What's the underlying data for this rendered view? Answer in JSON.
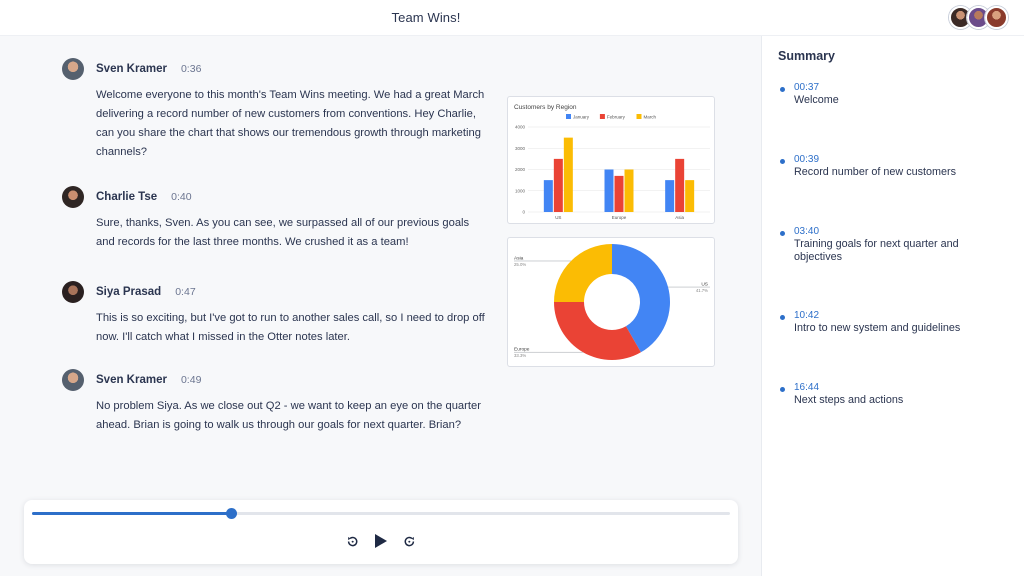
{
  "header": {
    "title": "Team Wins!",
    "participants": [
      "participant-1",
      "participant-2",
      "participant-3"
    ]
  },
  "transcript": [
    {
      "speaker": "Sven Kramer",
      "time": "0:36",
      "text": "Welcome everyone to this month's Team Wins meeting. We had a great March delivering a record number of new customers from conventions. Hey Charlie, can you share the chart that shows our tremendous growth through marketing channels?"
    },
    {
      "speaker": "Charlie Tse",
      "time": "0:40",
      "text": "Sure, thanks, Sven. As you can see, we surpassed all of our previous goals and records for the last three months. We crushed it as a team!"
    },
    {
      "speaker": "Siya Prasad",
      "time": "0:47",
      "text": "This is so exciting, but I've got to run to another sales call, so I need to drop off now. I'll catch what I missed in the Otter notes later."
    },
    {
      "speaker": "Sven Kramer",
      "time": "0:49",
      "text": "No problem Siya. As we close out Q2 - we want to keep an eye on the quarter ahead. Brian is going to walk us through our goals for next quarter. Brian?"
    }
  ],
  "chart_data": [
    {
      "type": "bar",
      "title": "Customers by Region",
      "categories": [
        "US",
        "Europe",
        "Asia"
      ],
      "series": [
        {
          "name": "January",
          "values": [
            1500,
            2000,
            1500
          ],
          "color": "#4285f4"
        },
        {
          "name": "February",
          "values": [
            2500,
            1700,
            2500
          ],
          "color": "#ea4335"
        },
        {
          "name": "March",
          "values": [
            3500,
            2000,
            1500
          ],
          "color": "#fbbc04"
        }
      ],
      "yticks": [
        0,
        1000,
        2000,
        3000,
        4000
      ],
      "ylim": [
        0,
        4000
      ],
      "legend": "top",
      "grid": true
    },
    {
      "type": "pie",
      "donut": true,
      "slices": [
        {
          "label": "US",
          "pct": "41.7%",
          "value": 41.7,
          "color": "#4285f4"
        },
        {
          "label": "Europe",
          "pct": "33.3%",
          "value": 33.3,
          "color": "#ea4335"
        },
        {
          "label": "Asia",
          "pct": "25.0%",
          "value": 25.0,
          "color": "#fbbc04"
        }
      ]
    }
  ],
  "player": {
    "progress": 0.285,
    "rewind_icon": "rewind-icon",
    "play_icon": "play-icon",
    "forward_icon": "forward-icon"
  },
  "summary": {
    "title": "Summary",
    "items": [
      {
        "time": "00:37",
        "text": "Welcome"
      },
      {
        "time": "00:39",
        "text": "Record number of new customers"
      },
      {
        "time": "03:40",
        "text": "Training goals for next quarter and objectives"
      },
      {
        "time": "10:42",
        "text": "Intro to new system and guidelines"
      },
      {
        "time": "16:44",
        "text": "Next steps and actions"
      }
    ]
  },
  "colors": {
    "accent": "#2d6fc9",
    "text": "#2b3550",
    "muted": "#6b7590"
  }
}
